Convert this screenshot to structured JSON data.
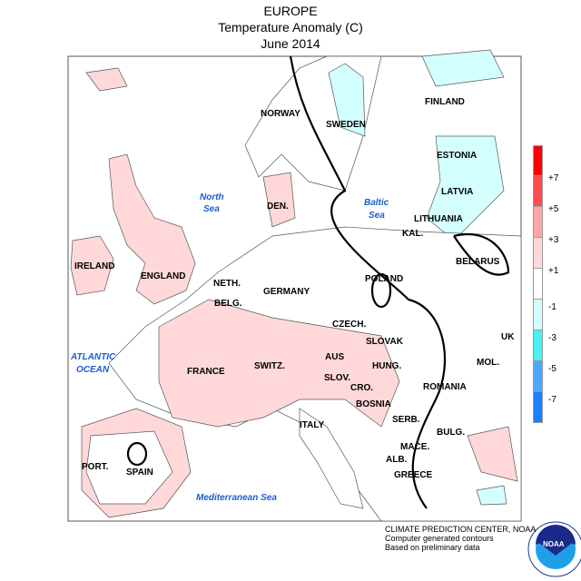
{
  "title": "EUROPE",
  "subtitle": "Temperature Anomaly (C)",
  "date": "June 2014",
  "labels": {
    "norway": "NORWAY",
    "sweden": "SWEDEN",
    "finland": "FINLAND",
    "estonia": "ESTONIA",
    "latvia": "LATVIA",
    "lithuania": "LITHUANIA",
    "kal": "KAL.",
    "den": "DEN.",
    "ireland": "IRELAND",
    "england": "ENGLAND",
    "neth": "NETH.",
    "belg": "BELG.",
    "germany": "GERMANY",
    "poland": "POLAND",
    "belarus": "BELARUS",
    "czech": "CZECH.",
    "slovak": "SLOVAK",
    "uk": "UK",
    "france": "FRANCE",
    "switz": "SWITZ.",
    "aus": "AUS",
    "hung": "HUNG.",
    "mol": "MOL.",
    "romania": "ROMANIA",
    "slov": "SLOV.",
    "cro": "CRO.",
    "bosnia": "BOSNIA",
    "serb": "SERB.",
    "italy": "ITALY",
    "bulg": "BULG.",
    "mace": "MACE.",
    "port": "PORT.",
    "spain": "SPAIN",
    "alb": "ALB.",
    "greece": "GREECE"
  },
  "seas": {
    "north1": "North",
    "north2": "Sea",
    "baltic1": "Baltic",
    "baltic2": "Sea",
    "atl1": "ATLANTIC",
    "atl2": "OCEAN",
    "med": "Mediterranean Sea"
  },
  "legend": {
    "ticks": [
      "+7",
      "+5",
      "+3",
      "+1",
      "-1",
      "-3",
      "-5",
      "-7"
    ],
    "colors": [
      "#ff0000",
      "#ff4d4d",
      "#ffa6a6",
      "#ffd9d9",
      "#ffffff",
      "#d4ffff",
      "#4df0f0",
      "#4da6ff",
      "#1a80ff"
    ]
  },
  "footer": {
    "line1": "CLIMATE PREDICTION CENTER, NOAA",
    "line2": "Computer generated contours",
    "line3": "Based on preliminary data"
  },
  "logo": {
    "text": "NOAA"
  }
}
